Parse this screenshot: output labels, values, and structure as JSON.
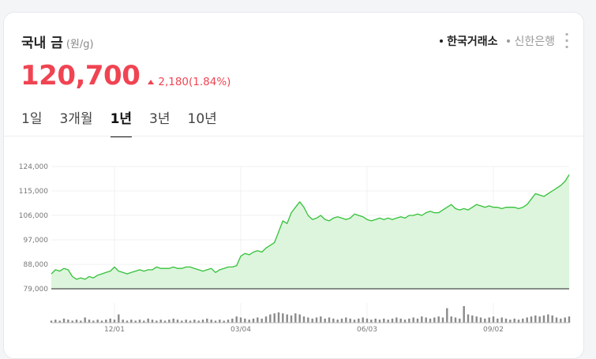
{
  "header": {
    "title": "국내 금",
    "unit": "(원/g)",
    "sources": [
      {
        "label": "한국거래소",
        "active": true
      },
      {
        "label": "신한은행",
        "active": false
      }
    ],
    "more_label": "⋮"
  },
  "quote": {
    "price": "120,700",
    "change": "2,180",
    "change_pct": "(1.84%)",
    "direction": "up"
  },
  "tabs": [
    {
      "label": "1일",
      "active": false
    },
    {
      "label": "3개월",
      "active": false
    },
    {
      "label": "1년",
      "active": true
    },
    {
      "label": "3년",
      "active": false
    },
    {
      "label": "10년",
      "active": false
    }
  ],
  "colors": {
    "up": "#f04452",
    "line": "#35c13a",
    "fill": "#dcf5dc",
    "volume": "#8a8a8a"
  },
  "chart_data": {
    "type": "area",
    "ylim": [
      79000,
      124000
    ],
    "yticks": [
      124000,
      115000,
      106000,
      97000,
      88000,
      79000
    ],
    "ytick_labels": [
      "124,000",
      "115,000",
      "106,000",
      "97,000",
      "88,000",
      "79,000"
    ],
    "xtick_labels": [
      "12/01",
      "03/04",
      "06/03",
      "09/02"
    ],
    "xtick_index": [
      15,
      45,
      75,
      105
    ],
    "grid": true,
    "values": [
      84500,
      86000,
      85500,
      86500,
      86000,
      83500,
      82500,
      83000,
      82500,
      83500,
      83000,
      84000,
      84500,
      85000,
      85500,
      87000,
      85500,
      85000,
      84500,
      85000,
      85500,
      86000,
      85500,
      86000,
      86000,
      87000,
      86500,
      86500,
      86500,
      87000,
      86500,
      86500,
      87000,
      87000,
      86500,
      86000,
      85500,
      86000,
      86500,
      85000,
      86000,
      86500,
      87000,
      87000,
      87500,
      91000,
      92000,
      91500,
      92500,
      93000,
      92500,
      94000,
      95000,
      96000,
      100000,
      104000,
      103000,
      107000,
      109000,
      111000,
      109000,
      106000,
      104500,
      105000,
      106000,
      104500,
      104000,
      105000,
      105500,
      105000,
      104500,
      105000,
      106500,
      106000,
      105500,
      104500,
      104000,
      104500,
      105000,
      104500,
      105000,
      104500,
      105000,
      105500,
      105000,
      106000,
      106000,
      106500,
      106000,
      107000,
      107500,
      107000,
      107000,
      108000,
      109000,
      110000,
      108500,
      108000,
      108500,
      108000,
      109000,
      110000,
      109500,
      109000,
      109500,
      109000,
      109000,
      108500,
      109000,
      109000,
      109000,
      108500,
      109000,
      110000,
      112000,
      114000,
      113500,
      113000,
      114000,
      115000,
      116000,
      117000,
      118500,
      121000
    ],
    "volume": [
      2,
      3,
      2,
      4,
      3,
      2,
      3,
      2,
      5,
      3,
      2,
      3,
      2,
      3,
      4,
      3,
      8,
      3,
      2,
      3,
      2,
      3,
      2,
      4,
      3,
      2,
      3,
      2,
      3,
      4,
      3,
      2,
      3,
      2,
      3,
      2,
      3,
      4,
      3,
      2,
      3,
      2,
      3,
      4,
      6,
      5,
      4,
      3,
      4,
      5,
      4,
      6,
      8,
      9,
      10,
      9,
      8,
      7,
      9,
      8,
      6,
      5,
      4,
      5,
      6,
      4,
      5,
      4,
      3,
      4,
      5,
      4,
      3,
      4,
      5,
      4,
      3,
      4,
      3,
      4,
      3,
      4,
      5,
      4,
      3,
      4,
      5,
      4,
      6,
      5,
      4,
      5,
      6,
      5,
      14,
      6,
      5,
      4,
      16,
      8,
      7,
      6,
      5,
      4,
      5,
      6,
      4,
      5,
      4,
      3,
      4,
      3,
      4,
      5,
      6,
      7,
      6,
      7,
      8,
      7,
      5,
      4,
      5,
      6
    ]
  }
}
